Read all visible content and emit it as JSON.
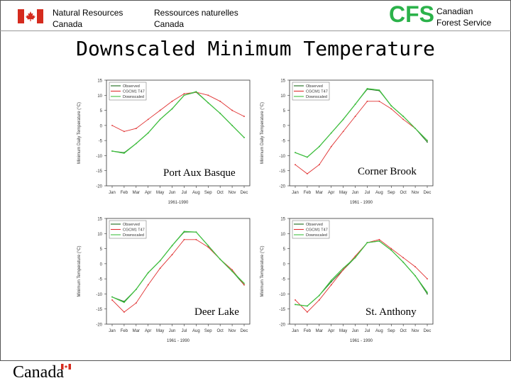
{
  "header": {
    "dept_en_line1": "Natural Resources",
    "dept_en_line2": "Canada",
    "dept_fr_line1": "Ressources naturelles",
    "dept_fr_line2": "Canada",
    "cfs_logo": "CFS",
    "cfs_line1": "Canadian",
    "cfs_line2": "Forest Service"
  },
  "title": "Downscaled Minimum Temperature",
  "footer": {
    "wordmark": "Canada"
  },
  "colors": {
    "observed": "#1a6a1a",
    "cgcm": "#e03030",
    "downscaled": "#40c040",
    "cfs_green": "#2bb24a"
  },
  "chart_data": [
    {
      "type": "line",
      "site": "Port Aux Basque",
      "categories": [
        "Jan",
        "Feb",
        "Mar",
        "Apr",
        "May",
        "Jun",
        "Jul",
        "Aug",
        "Sep",
        "Oct",
        "Nov",
        "Dec"
      ],
      "ylabel": "Minimum Daily Temperature (°C)",
      "xlabel": "1961-1990",
      "ylim": [
        -20,
        15
      ],
      "yticks": [
        "15",
        "10",
        "5",
        "0",
        "-5",
        "-10",
        "-15",
        "-20"
      ],
      "legend": [
        "Observed",
        "CGCM1 T47",
        "Downscaled"
      ],
      "series": [
        {
          "name": "Observed",
          "values": [
            -8.5,
            -9,
            -6,
            -2.5,
            2,
            5.5,
            10,
            11,
            7.5,
            4,
            0,
            -4
          ]
        },
        {
          "name": "CGCM1 T47",
          "values": [
            0,
            -2,
            -1,
            2,
            5,
            8,
            10.5,
            11,
            10,
            8,
            5,
            3
          ]
        },
        {
          "name": "Downscaled",
          "values": [
            -8.5,
            -9.2,
            -6,
            -2.5,
            2,
            5.5,
            10,
            11.2,
            7.5,
            4,
            0,
            -4
          ]
        }
      ]
    },
    {
      "type": "line",
      "site": "Corner Brook",
      "categories": [
        "Jan",
        "Feb",
        "Mar",
        "Apr",
        "May",
        "Jun",
        "Jul",
        "Aug",
        "Sep",
        "Oct",
        "Nov",
        "Dec"
      ],
      "ylabel": "Minimum Daily Temperature (°C)",
      "xlabel": "1961 - 1990",
      "ylim": [
        -20,
        15
      ],
      "yticks": [
        "15",
        "10",
        "5",
        "0",
        "-5",
        "-10",
        "-15",
        "-20"
      ],
      "legend": [
        "Observed",
        "CGCM1 T47",
        "Downscaled"
      ],
      "series": [
        {
          "name": "Observed",
          "values": [
            -9,
            -10.5,
            -7,
            -2.5,
            2,
            7,
            12,
            11.5,
            6.5,
            3,
            -1,
            -5.5
          ]
        },
        {
          "name": "CGCM1 T47",
          "values": [
            -13,
            -16,
            -13,
            -7,
            -2,
            3,
            8,
            8,
            5.5,
            2,
            -1,
            -5
          ]
        },
        {
          "name": "Downscaled",
          "values": [
            -9,
            -10.5,
            -7,
            -2.5,
            2,
            7,
            12.2,
            11.7,
            6.5,
            3,
            -1,
            -5
          ]
        }
      ]
    },
    {
      "type": "line",
      "site": "Deer Lake",
      "categories": [
        "Jan",
        "Feb",
        "Mar",
        "Apr",
        "May",
        "Jun",
        "Jul",
        "Aug",
        "Sep",
        "Oct",
        "Nov",
        "Dec"
      ],
      "ylabel": "Minimum Temperature (°C)",
      "xlabel": "1961 - 1990",
      "ylim": [
        -20,
        15
      ],
      "yticks": [
        "15",
        "10",
        "5",
        "0",
        "-5",
        "-10",
        "-15",
        "-20"
      ],
      "legend": [
        "Observed",
        "CGCM1 T47",
        "Downscaled"
      ],
      "series": [
        {
          "name": "Observed",
          "values": [
            -11,
            -12.5,
            -8.5,
            -3,
            1,
            6,
            10.5,
            10.5,
            6,
            1.5,
            -2.5,
            -7
          ]
        },
        {
          "name": "CGCM1 T47",
          "values": [
            -12,
            -16,
            -13,
            -7,
            -1.5,
            3,
            8,
            8,
            5.5,
            1.5,
            -2,
            -7
          ]
        },
        {
          "name": "Downscaled",
          "values": [
            -11,
            -12.8,
            -8.5,
            -3,
            1,
            6,
            10.7,
            10.5,
            6,
            1.5,
            -2.5,
            -6.5
          ]
        }
      ]
    },
    {
      "type": "line",
      "site": "St. Anthony",
      "categories": [
        "Jan",
        "Feb",
        "Mar",
        "Apr",
        "May",
        "Jun",
        "Jul",
        "Aug",
        "Sep",
        "Oct",
        "Nov",
        "Dec"
      ],
      "ylabel": "Minimum Temperature (°C)",
      "xlabel": "1961 - 1990",
      "ylim": [
        -20,
        15
      ],
      "yticks": [
        "15",
        "10",
        "5",
        "0",
        "-5",
        "-10",
        "-15",
        "-20"
      ],
      "legend": [
        "Observed",
        "CGCM1 T47",
        "Downscaled"
      ],
      "series": [
        {
          "name": "Observed",
          "values": [
            -13.5,
            -14,
            -10.5,
            -6,
            -2,
            2,
            7,
            7.5,
            4.5,
            0.5,
            -4,
            -10
          ]
        },
        {
          "name": "CGCM1 T47",
          "values": [
            -12,
            -16,
            -12,
            -7,
            -2,
            2.5,
            7,
            8,
            5,
            2,
            -1,
            -5
          ]
        },
        {
          "name": "Downscaled",
          "values": [
            -13.5,
            -14,
            -10.5,
            -5.5,
            -1.5,
            2,
            7,
            7.5,
            4.5,
            0.5,
            -4,
            -9.5
          ]
        }
      ]
    }
  ]
}
